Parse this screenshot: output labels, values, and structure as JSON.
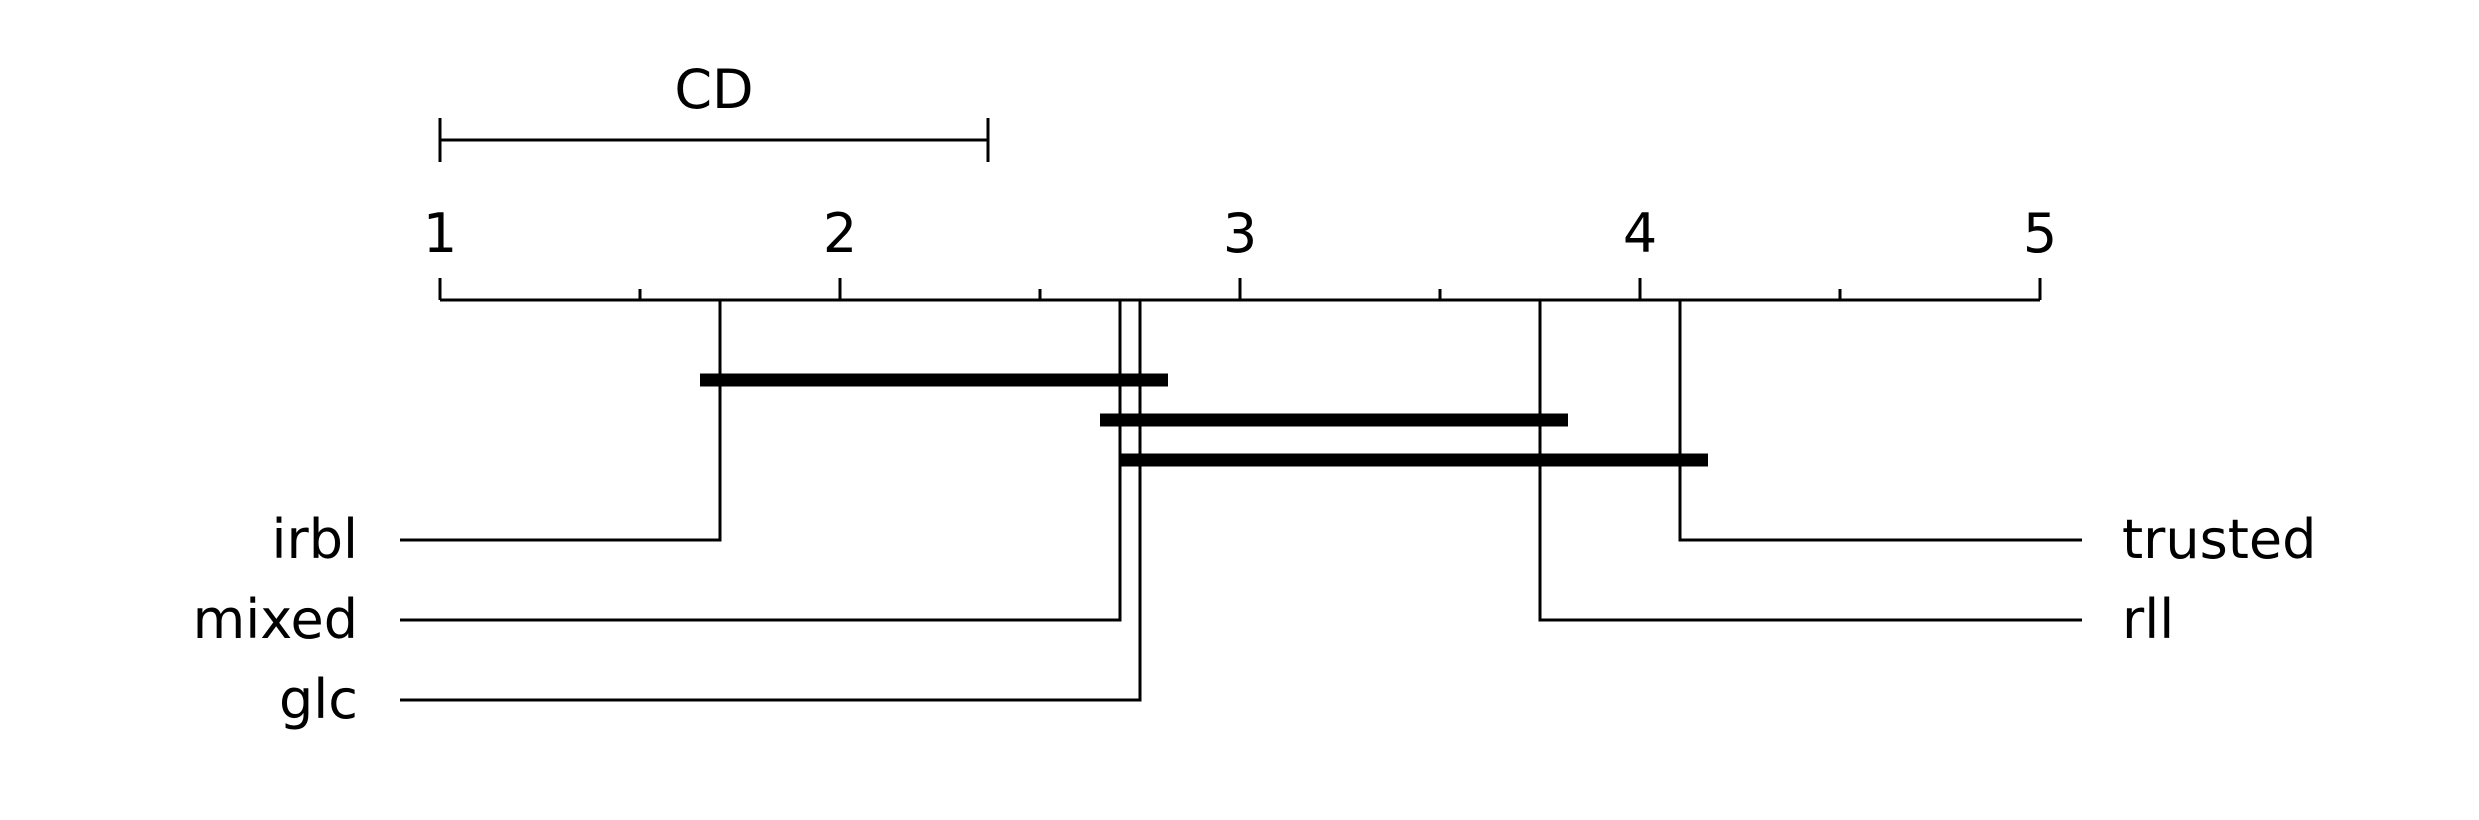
{
  "chart_data": {
    "type": "critical-difference-diagram",
    "axis": {
      "range": [
        1,
        5
      ],
      "tick_labels": [
        "1",
        "2",
        "3",
        "4",
        "5"
      ],
      "minor_ticks": [
        1.5,
        2.5,
        3.5,
        4.5
      ]
    },
    "cd_label": "CD",
    "cd_value": 1.37,
    "methods": [
      {
        "name": "irbl",
        "rank": 1.7,
        "side": "left"
      },
      {
        "name": "mixed",
        "rank": 2.7,
        "side": "left"
      },
      {
        "name": "glc",
        "rank": 2.75,
        "side": "left"
      },
      {
        "name": "trusted",
        "rank": 4.1,
        "side": "right"
      },
      {
        "name": "rll",
        "rank": 3.75,
        "side": "right"
      }
    ],
    "cliques": [
      {
        "from": 1.65,
        "to": 2.82
      },
      {
        "from": 2.65,
        "to": 3.82
      },
      {
        "from": 2.7,
        "to": 4.17
      }
    ]
  }
}
